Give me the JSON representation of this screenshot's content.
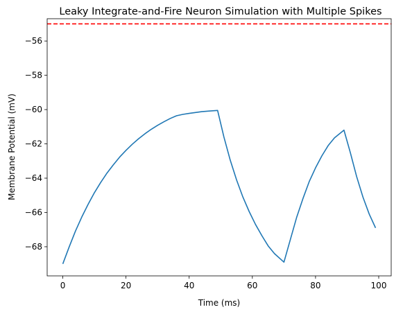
{
  "chart_data": {
    "type": "line",
    "title": "Leaky Integrate-and-Fire Neuron Simulation with Multiple Spikes",
    "xlabel": "Time (ms)",
    "ylabel": "Membrane Potential (mV)",
    "xlim": [
      -4.95,
      103.95
    ],
    "ylim": [
      -69.7,
      -54.7
    ],
    "xticks": [
      0,
      20,
      40,
      60,
      80,
      100
    ],
    "yticks": [
      -68,
      -66,
      -64,
      -62,
      -60,
      -58,
      -56
    ],
    "grid": false,
    "legend": "none",
    "threshold": {
      "value": -55,
      "color": "#ff0000",
      "style": "dashed"
    },
    "series": [
      {
        "color": "#1f77b4",
        "x": [
          0,
          2,
          4,
          6,
          8,
          10,
          12,
          14,
          16,
          18,
          20,
          22,
          24,
          26,
          28,
          30,
          32,
          34,
          36,
          38,
          40,
          42,
          44,
          46,
          49,
          51,
          53,
          55,
          57,
          59,
          61,
          63,
          65,
          67,
          70,
          72,
          74,
          76,
          78,
          80,
          82,
          84,
          86,
          89,
          91,
          93,
          95,
          97,
          99
        ],
        "y": [
          -69.0,
          -68.02,
          -67.09,
          -66.27,
          -65.53,
          -64.85,
          -64.25,
          -63.7,
          -63.22,
          -62.77,
          -62.38,
          -62.02,
          -61.7,
          -61.41,
          -61.15,
          -60.92,
          -60.71,
          -60.52,
          -60.36,
          -60.28,
          -60.22,
          -60.17,
          -60.12,
          -60.09,
          -60.05,
          -61.6,
          -62.95,
          -64.1,
          -65.1,
          -65.95,
          -66.7,
          -67.35,
          -67.95,
          -68.4,
          -68.9,
          -67.6,
          -66.3,
          -65.2,
          -64.2,
          -63.4,
          -62.7,
          -62.1,
          -61.65,
          -61.2,
          -62.5,
          -63.9,
          -65.1,
          -66.1,
          -66.9
        ]
      }
    ]
  }
}
